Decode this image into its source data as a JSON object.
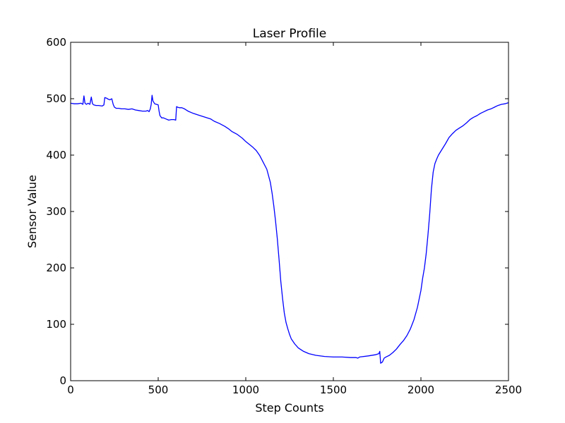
{
  "chart_data": {
    "type": "line",
    "title": "Laser Profile",
    "xlabel": "Step Counts",
    "ylabel": "Sensor Value",
    "xlim": [
      0,
      2500
    ],
    "ylim": [
      0,
      600
    ],
    "grid": false,
    "legend": "none",
    "x_ticks": [
      0,
      500,
      1000,
      1500,
      2000,
      2500
    ],
    "x_tick_labels": [
      "0",
      "500",
      "1000",
      "1500",
      "2000",
      "2500"
    ],
    "y_ticks": [
      0,
      100,
      200,
      300,
      400,
      500,
      600
    ],
    "y_tick_labels": [
      "0",
      "100",
      "200",
      "300",
      "400",
      "500",
      "600"
    ],
    "series": [
      {
        "color": "#0000ff",
        "x": [
          0,
          20,
          40,
          60,
          70,
          76,
          82,
          90,
          100,
          110,
          118,
          125,
          132,
          145,
          160,
          180,
          190,
          195,
          205,
          215,
          225,
          235,
          243,
          250,
          260,
          275,
          290,
          310,
          330,
          350,
          370,
          390,
          410,
          430,
          440,
          448,
          455,
          460,
          465,
          470,
          480,
          490,
          500,
          505,
          510,
          520,
          530,
          545,
          560,
          575,
          590,
          600,
          605,
          610,
          620,
          635,
          650,
          670,
          700,
          730,
          760,
          790,
          800,
          820,
          850,
          880,
          900,
          920,
          950,
          980,
          1000,
          1020,
          1040,
          1060,
          1080,
          1100,
          1120,
          1140,
          1150,
          1160,
          1170,
          1180,
          1190,
          1200,
          1210,
          1220,
          1230,
          1240,
          1250,
          1260,
          1280,
          1300,
          1330,
          1360,
          1400,
          1450,
          1500,
          1550,
          1600,
          1630,
          1640,
          1650,
          1700,
          1740,
          1760,
          1765,
          1770,
          1780,
          1790,
          1800,
          1820,
          1840,
          1860,
          1880,
          1900,
          1920,
          1940,
          1960,
          1980,
          2000,
          2010,
          2020,
          2030,
          2040,
          2050,
          2060,
          2070,
          2080,
          2090,
          2100,
          2120,
          2140,
          2160,
          2180,
          2200,
          2220,
          2240,
          2260,
          2280,
          2300,
          2320,
          2340,
          2360,
          2380,
          2400,
          2420,
          2440,
          2460,
          2480,
          2500
        ],
        "y": [
          492,
          491,
          491,
          492,
          490,
          505,
          492,
          490,
          492,
          490,
          503,
          491,
          489,
          488,
          488,
          487,
          489,
          502,
          501,
          499,
          498,
          500,
          490,
          485,
          483,
          483,
          482,
          482,
          481,
          482,
          480,
          479,
          478,
          478,
          479,
          477,
          482,
          490,
          506,
          496,
          491,
          490,
          489,
          478,
          470,
          466,
          466,
          464,
          462,
          463,
          463,
          462,
          486,
          485,
          484,
          484,
          482,
          478,
          474,
          471,
          468,
          465,
          464,
          460,
          456,
          451,
          447,
          442,
          437,
          430,
          424,
          419,
          414,
          408,
          399,
          387,
          375,
          352,
          333,
          310,
          283,
          252,
          215,
          176,
          146,
          120,
          103,
          92,
          82,
          74,
          65,
          58,
          52,
          48,
          45,
          43,
          42,
          42,
          41,
          41,
          40,
          42,
          44,
          46,
          48,
          52,
          31,
          33,
          40,
          42,
          45,
          50,
          56,
          64,
          71,
          80,
          92,
          108,
          130,
          160,
          182,
          200,
          225,
          258,
          295,
          340,
          370,
          385,
          393,
          400,
          410,
          420,
          431,
          438,
          444,
          448,
          452,
          457,
          463,
          467,
          470,
          474,
          477,
          480,
          482,
          485,
          488,
          490,
          491,
          493
        ]
      }
    ]
  }
}
